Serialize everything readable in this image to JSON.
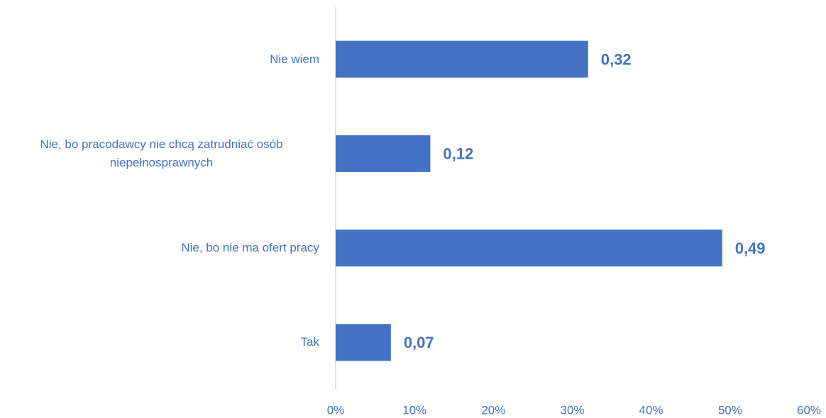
{
  "chart_data": {
    "type": "bar",
    "orientation": "horizontal",
    "categories": [
      "Nie wiem",
      "Nie, bo pracodawcy nie chcą zatrudniać osób niepełnosprawnych",
      "Nie, bo nie ma ofert pracy",
      "Tak"
    ],
    "values": [
      32,
      12,
      49,
      7
    ],
    "value_labels": [
      "0,32",
      "0,12",
      "0,49",
      "0,07"
    ],
    "color": "#4472c4",
    "xlim": [
      0,
      60
    ],
    "xticks": [
      {
        "value": 0,
        "label": "0%"
      },
      {
        "value": 10,
        "label": "10%"
      },
      {
        "value": 20,
        "label": "20%"
      },
      {
        "value": 30,
        "label": "30%"
      },
      {
        "value": 40,
        "label": "40%"
      },
      {
        "value": 50,
        "label": "50%"
      },
      {
        "value": 60,
        "label": "60%"
      }
    ],
    "grid": false
  }
}
